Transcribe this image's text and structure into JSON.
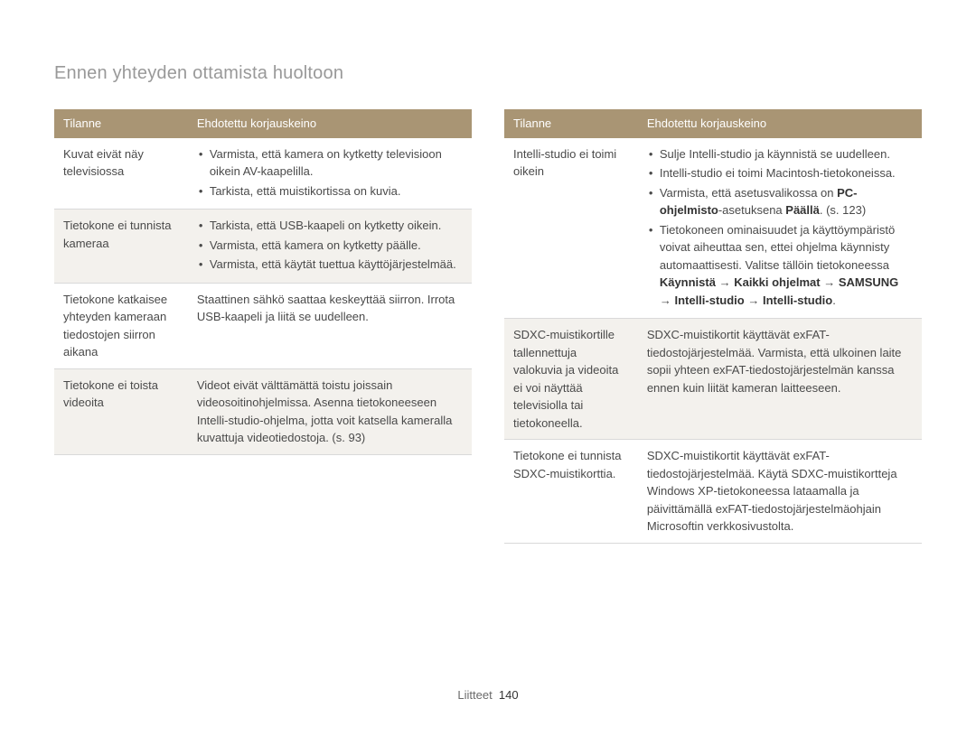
{
  "title": "Ennen yhteyden ottamista huoltoon",
  "headers": {
    "situation": "Tilanne",
    "remedy": "Ehdotettu korjauskeino"
  },
  "footer": {
    "section": "Liitteet",
    "page": "140"
  },
  "left": [
    {
      "shaded": false,
      "situation": "Kuvat eivät näy televisiossa",
      "items": [
        "Varmista, että kamera on kytketty televisioon oikein AV-kaapelilla.",
        "Tarkista, että muistikortissa on kuvia."
      ]
    },
    {
      "shaded": true,
      "situation": "Tietokone ei tunnista kameraa",
      "items": [
        "Tarkista, että USB-kaapeli on kytketty oikein.",
        "Varmista, että kamera on kytketty päälle.",
        "Varmista, että käytät tuettua käyttöjärjestelmää."
      ]
    },
    {
      "shaded": false,
      "situation": "Tietokone katkaisee yhteyden kameraan tiedostojen siirron aikana",
      "text": "Staattinen sähkö saattaa keskeyttää siirron. Irrota USB-kaapeli ja liitä se uudelleen."
    },
    {
      "shaded": true,
      "situation": "Tietokone ei toista videoita",
      "text": "Videot eivät välttämättä toistu joissain videosoitinohjelmissa. Asenna tietokoneeseen Intelli-studio-ohjelma, jotta voit katsella kameralla kuvattuja videotiedostoja. (s. 93)"
    }
  ],
  "right": [
    {
      "shaded": false,
      "situation": "Intelli-studio ei toimi oikein",
      "html": "<ul><li>Sulje Intelli-studio ja käynnistä se uudelleen.</li><li>Intelli-studio ei toimi Macintosh-tietokoneissa.</li><li>Varmista, että asetusvalikossa on <b>PC-ohjelmisto</b>-asetuksena <b>Päällä</b>. (s. 123)</li><li>Tietokoneen ominaisuudet ja käyttöympäristö voivat aiheuttaa sen, ettei ohjelma käynnisty automaattisesti. Valitse tällöin tietokoneessa <b>Käynnistä</b> → <b>Kaikki ohjelmat</b> → <b>SAMSUNG</b> → <b>Intelli-studio</b> → <b>Intelli-studio</b>.</li></ul>"
    },
    {
      "shaded": true,
      "situation": "SDXC-muistikortille tallennettuja valokuvia ja videoita ei voi näyttää televisiolla tai tietokoneella.",
      "text": "SDXC-muistikortit käyttävät exFAT-tiedostojärjestelmää. Varmista, että ulkoinen laite sopii yhteen exFAT-tiedostojärjestelmän kanssa ennen kuin liität kameran laitteeseen."
    },
    {
      "shaded": false,
      "situation": "Tietokone ei tunnista SDXC-muistikorttia.",
      "text": "SDXC-muistikortit käyttävät exFAT-tiedostojärjestelmää. Käytä SDXC-muistikortteja Windows XP-tietokoneessa lataamalla ja päivittämällä exFAT-tiedostojärjestelmäohjain Microsoftin verkkosivustolta."
    }
  ]
}
